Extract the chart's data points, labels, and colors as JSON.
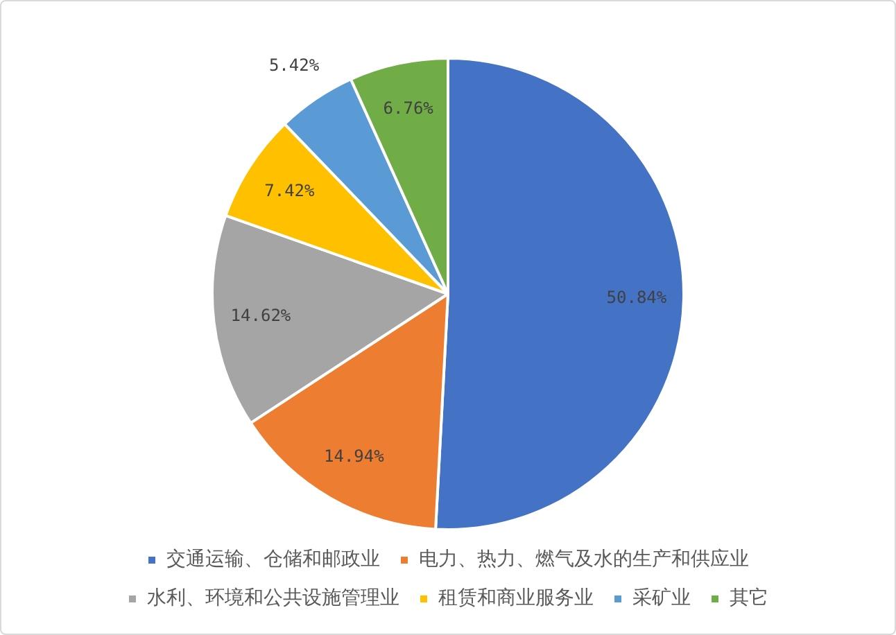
{
  "chart_data": {
    "type": "pie",
    "categories": [
      "交通运输、仓储和邮政业",
      "电力、热力、燃气及水的生产和供应业",
      "水利、环境和公共设施管理业",
      "租赁和商业服务业",
      "采矿业",
      "其它"
    ],
    "values": [
      50.84,
      14.94,
      14.62,
      7.42,
      5.42,
      6.76
    ],
    "colors": [
      "#4472c4",
      "#ed7d31",
      "#a5a5a5",
      "#ffc000",
      "#5b9bd5",
      "#70ad47"
    ],
    "value_labels": [
      "50.84%",
      "14.94%",
      "14.62%",
      "7.42%",
      "5.42%",
      "6.76%"
    ],
    "legend": "bottom"
  }
}
